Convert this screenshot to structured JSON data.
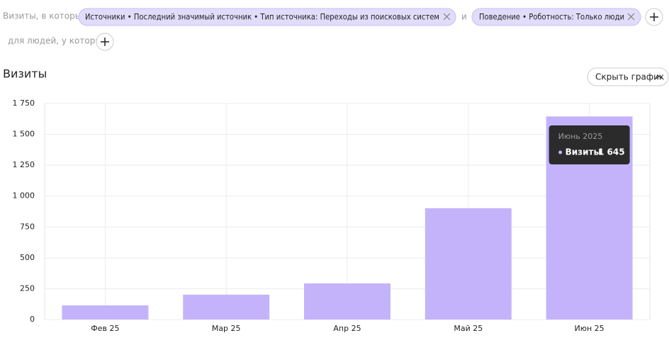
{
  "filters": {
    "lead": "Визиты, в которых",
    "chips": [
      "Источники • Последний значимый источник • Тип источника: Переходы из поисковых систем",
      "Поведение • Роботность: Только люди"
    ],
    "joiner": "и",
    "people_lead": "для людей, у которых"
  },
  "hide_button": "Скрыть график",
  "chart_data": {
    "type": "bar",
    "title": "Визиты",
    "categories": [
      "Фев 25",
      "Мар 25",
      "Апр 25",
      "Май 25",
      "Июн 25"
    ],
    "series": [
      {
        "name": "Визиты",
        "color": "#c4b3fa",
        "values": [
          115,
          202,
          293,
          902,
          1645
        ],
        "value_labels": [
          null,
          null,
          null,
          null,
          "1 645"
        ]
      }
    ],
    "tooltip_title": "Июнь 2025",
    "ylim": [
      0,
      1750
    ],
    "yticks": [
      0,
      250,
      500,
      750,
      {
        "value": 1000,
        "label": "1 000"
      },
      {
        "value": 1250,
        "label": "1 250"
      },
      {
        "value": 1500,
        "label": "1 500"
      },
      {
        "value": 1750,
        "label": "1 750"
      }
    ],
    "grid": true
  }
}
